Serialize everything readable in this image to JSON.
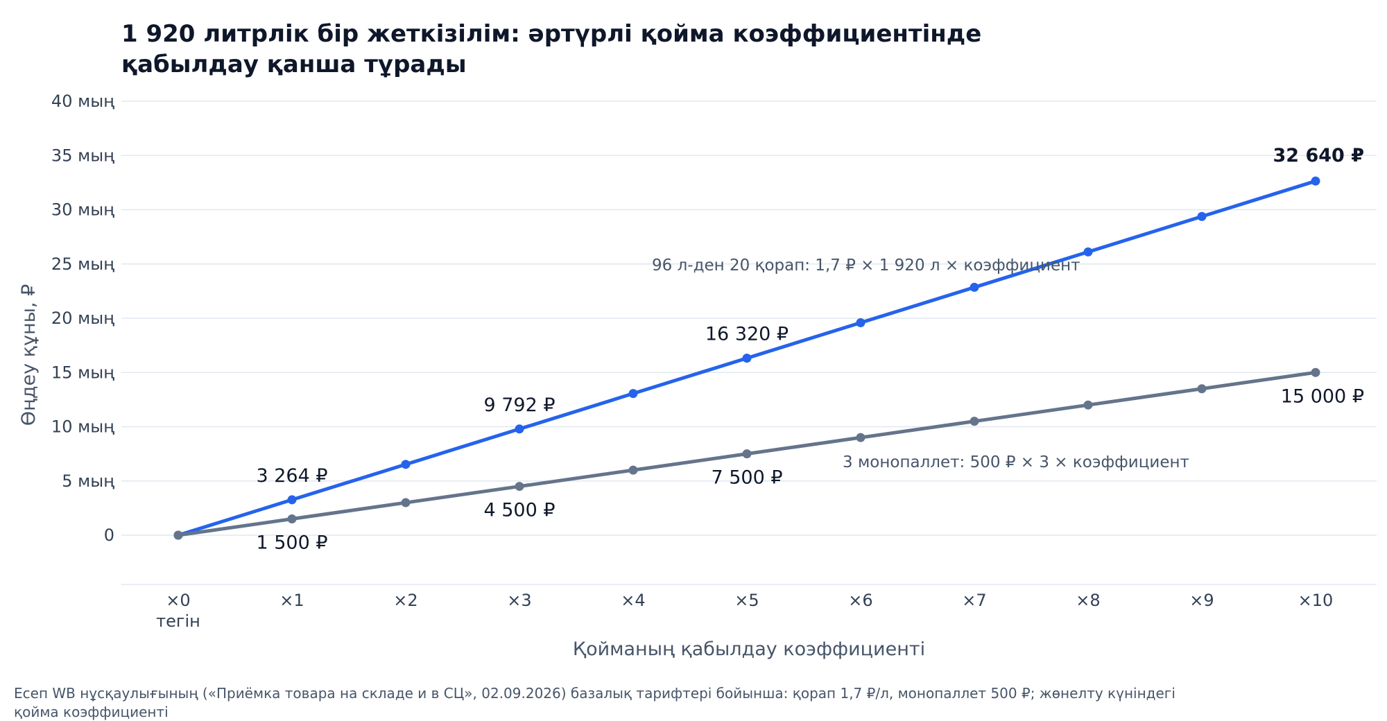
{
  "chart_data": {
    "type": "line",
    "title_lines": [
      "1 920 литрлік бір жеткізілім: әртүрлі қойма коэффициентінде",
      "қабылдау қанша тұрады"
    ],
    "xlabel": "Қойманың қабылдау коэффициенті",
    "ylabel": "Өңдеу құны, ₽",
    "x": [
      0,
      1,
      2,
      3,
      4,
      5,
      6,
      7,
      8,
      9,
      10
    ],
    "x_tick_labels": [
      "×0",
      "×1",
      "×2",
      "×3",
      "×4",
      "×5",
      "×6",
      "×7",
      "×8",
      "×9",
      "×10"
    ],
    "x_tick_sublabels": [
      "тегін",
      "",
      "",
      "",
      "",
      "",
      "",
      "",
      "",
      "",
      ""
    ],
    "ylim": [
      -4500,
      40000
    ],
    "y_ticks": [
      0,
      5000,
      10000,
      15000,
      20000,
      25000,
      30000,
      35000,
      40000
    ],
    "y_tick_labels": [
      "0",
      "5 мың",
      "10 мың",
      "15 мың",
      "20 мың",
      "25 мың",
      "30 мың",
      "35 мың",
      "40 мың"
    ],
    "grid": true,
    "series": [
      {
        "values": [
          0,
          3264,
          6528,
          9792,
          13056,
          16320,
          19584,
          22848,
          26112,
          29376,
          32640
        ],
        "color": "#2563eb",
        "annotation": "96 л-ден 20 қорап: 1,7 ₽ × 1 920 л × коэффициент",
        "data_labels": [
          {
            "x": 1,
            "text": "3 264 ₽",
            "bold": false,
            "position": "above"
          },
          {
            "x": 3,
            "text": "9 792 ₽",
            "bold": false,
            "position": "above"
          },
          {
            "x": 5,
            "text": "16 320 ₽",
            "bold": false,
            "position": "above"
          },
          {
            "x": 10,
            "text": "32 640 ₽",
            "bold": true,
            "position": "above"
          }
        ]
      },
      {
        "values": [
          0,
          1500,
          3000,
          4500,
          6000,
          7500,
          9000,
          10500,
          12000,
          13500,
          15000
        ],
        "color": "#64748b",
        "annotation": "3 монопаллет: 500 ₽ × 3 × коэффициент",
        "data_labels": [
          {
            "x": 1,
            "text": "1 500 ₽",
            "bold": false,
            "position": "below"
          },
          {
            "x": 3,
            "text": "4 500 ₽",
            "bold": false,
            "position": "below"
          },
          {
            "x": 5,
            "text": "7 500 ₽",
            "bold": false,
            "position": "below"
          },
          {
            "x": 10,
            "text": "15 000 ₽",
            "bold": false,
            "position": "below"
          }
        ]
      }
    ],
    "footnote_lines": [
      "Есеп WB нұсқаулығының («Приёмка товара на складе и в СЦ», 02.09.2026) базалық тарифтері бойынша: қорап 1,7 ₽/л, монопаллет 500 ₽; жөнелту күніндегі",
      "қойма коэффициенті"
    ]
  }
}
